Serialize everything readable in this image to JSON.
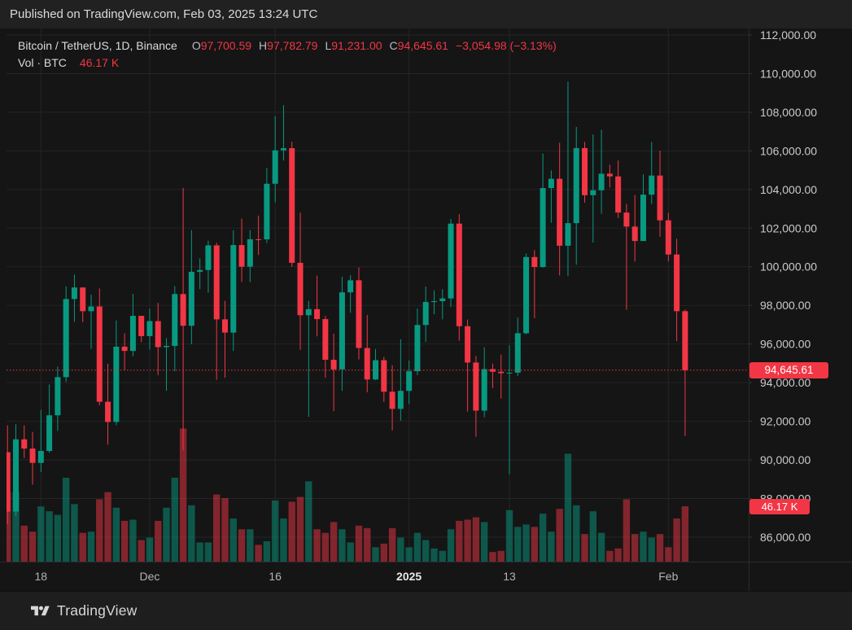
{
  "published_bar": {
    "text": "Published on TradingView.com, Feb 03, 2025 13:24 UTC"
  },
  "legend": {
    "symbol_title": "Bitcoin / TetherUS, 1D, Binance",
    "ohlc": [
      {
        "label": "O",
        "value": "97,700.59"
      },
      {
        "label": "H",
        "value": "97,782.79"
      },
      {
        "label": "L",
        "value": "91,231.00"
      },
      {
        "label": "C",
        "value": "94,645.61"
      }
    ],
    "change": "−3,054.98 (−3.13%)",
    "volume_label": "Vol · BTC",
    "volume_value": "46.17 K"
  },
  "last_price_badge": "94,645.61",
  "volume_badge": "46.17 K",
  "footer": {
    "brand": "TradingView"
  },
  "colors": {
    "up": "#089981",
    "down": "#F23645",
    "badge": "#F23645",
    "background": "#151515",
    "grid": "#252525",
    "axis_text": "#C9CACD",
    "time_text": "#B2B3B6",
    "time_text_bold": "#E6E7E9",
    "separator": "#2B2B2B"
  },
  "chart_data": {
    "type": "candlestick",
    "title": "Bitcoin / TetherUS, 1D, Binance",
    "last_price": 94645.61,
    "last_volume_k": 46.17,
    "y_axis": {
      "grid_step": 2000,
      "labels": [
        {
          "price": 112000,
          "text": "112,000.00"
        },
        {
          "price": 110000,
          "text": "110,000.00"
        },
        {
          "price": 108000,
          "text": "108,000.00"
        },
        {
          "price": 106000,
          "text": "106,000.00"
        },
        {
          "price": 104000,
          "text": "104,000.00"
        },
        {
          "price": 102000,
          "text": "102,000.00"
        },
        {
          "price": 100000,
          "text": "100,000.00"
        },
        {
          "price": 98000,
          "text": "98,000.00"
        },
        {
          "price": 96000,
          "text": "96,000.00"
        },
        {
          "price": 94000,
          "text": "94,000.00"
        },
        {
          "price": 92000,
          "text": "92,000.00"
        },
        {
          "price": 90000,
          "text": "90,000.00"
        },
        {
          "price": 88000,
          "text": "88,000.00"
        },
        {
          "price": 86000,
          "text": "86,000.00"
        }
      ]
    },
    "x_axis": {
      "ticks": [
        {
          "text": "18",
          "row": 4,
          "bold": false
        },
        {
          "text": "Dec",
          "row": 17,
          "bold": false
        },
        {
          "text": "16",
          "row": 32,
          "bold": false
        },
        {
          "text": "2025",
          "row": 48,
          "bold": true
        },
        {
          "text": "13",
          "row": 60,
          "bold": false
        },
        {
          "text": "Feb",
          "row": 79,
          "bold": false
        }
      ]
    },
    "columns": [
      "date",
      "open",
      "high",
      "low",
      "close",
      "volume_k_btc"
    ],
    "candles": [
      [
        "Nov 14",
        90400,
        91790,
        86668,
        87325,
        58
      ],
      [
        "Nov 15",
        87325,
        91850,
        87100,
        91066,
        58
      ],
      [
        "Nov 16",
        91066,
        91790,
        90100,
        90587,
        30
      ],
      [
        "Nov 17",
        90587,
        91449,
        88722,
        89845,
        25
      ],
      [
        "Nov 18",
        89845,
        92594,
        89376,
        90464,
        46
      ],
      [
        "Nov 19",
        90464,
        93905,
        90372,
        92310,
        42
      ],
      [
        "Nov 20",
        92310,
        94831,
        91500,
        94286,
        39
      ],
      [
        "Nov 21",
        94286,
        98988,
        94040,
        98331,
        70
      ],
      [
        "Nov 22",
        98331,
        99588,
        97153,
        98928,
        48
      ],
      [
        "Nov 23",
        98928,
        98928,
        97130,
        97700,
        24
      ],
      [
        "Nov 24",
        97700,
        98564,
        95747,
        97944,
        25
      ],
      [
        "Nov 25",
        97944,
        98871,
        92823,
        93010,
        52
      ],
      [
        "Nov 26",
        93010,
        94980,
        90791,
        91965,
        58
      ],
      [
        "Nov 27",
        91965,
        97219,
        91792,
        95863,
        45
      ],
      [
        "Nov 28",
        95863,
        96548,
        94648,
        95643,
        34
      ],
      [
        "Nov 29",
        95643,
        98599,
        95364,
        97460,
        35
      ],
      [
        "Nov 30",
        97460,
        97461,
        96100,
        96407,
        18
      ],
      [
        "Dec 1",
        96407,
        97836,
        95712,
        97185,
        20
      ],
      [
        "Dec 2",
        97185,
        98130,
        94395,
        95841,
        34
      ],
      [
        "Dec 3",
        95841,
        96305,
        93578,
        95903,
        45
      ],
      [
        "Dec 4",
        95903,
        99000,
        94587,
        98587,
        70
      ],
      [
        "Dec 5",
        98587,
        104088,
        90500,
        96945,
        111
      ],
      [
        "Dec 6",
        96945,
        101898,
        95987,
        99740,
        47
      ],
      [
        "Dec 7",
        99740,
        100439,
        98844,
        99831,
        16
      ],
      [
        "Dec 8",
        99831,
        101351,
        98657,
        101109,
        16
      ],
      [
        "Dec 9",
        101109,
        101236,
        94150,
        97276,
        56
      ],
      [
        "Dec 10",
        97276,
        98237,
        94256,
        96593,
        53
      ],
      [
        "Dec 11",
        96593,
        101888,
        95650,
        101125,
        36
      ],
      [
        "Dec 12",
        101125,
        102495,
        99219,
        100004,
        27
      ],
      [
        "Dec 13",
        100004,
        101895,
        99205,
        101424,
        27
      ],
      [
        "Dec 14",
        101424,
        102650,
        100609,
        101420,
        14
      ],
      [
        "Dec 15",
        101420,
        105120,
        101234,
        104298,
        17
      ],
      [
        "Dec 16",
        104298,
        107793,
        103333,
        106029,
        51
      ],
      [
        "Dec 17",
        106029,
        108364,
        105500,
        106140,
        36
      ],
      [
        "Dec 18",
        106140,
        106477,
        100000,
        100204,
        50
      ],
      [
        "Dec 19",
        100204,
        102800,
        95700,
        97490,
        54
      ],
      [
        "Dec 20",
        97490,
        98233,
        92232,
        97805,
        67
      ],
      [
        "Dec 21",
        97805,
        99540,
        96398,
        97290,
        27
      ],
      [
        "Dec 22",
        97290,
        97448,
        94250,
        95186,
        24
      ],
      [
        "Dec 23",
        95186,
        96538,
        92520,
        94686,
        33
      ],
      [
        "Dec 24",
        94686,
        99487,
        93571,
        98676,
        27
      ],
      [
        "Dec 25",
        98676,
        99563,
        97618,
        99299,
        16
      ],
      [
        "Dec 26",
        99299,
        99963,
        95199,
        95795,
        30
      ],
      [
        "Dec 27",
        95795,
        97507,
        93500,
        94164,
        28
      ],
      [
        "Dec 28",
        94164,
        95750,
        94135,
        95163,
        12
      ],
      [
        "Dec 29",
        95163,
        95340,
        93009,
        93530,
        15
      ],
      [
        "Dec 30",
        93530,
        94900,
        91530,
        92643,
        28
      ],
      [
        "Dec 31",
        92643,
        96250,
        92033,
        93576,
        20
      ],
      [
        "Jan 1",
        93576,
        95151,
        92888,
        94591,
        12
      ],
      [
        "Jan 2",
        94591,
        97839,
        94392,
        96984,
        24
      ],
      [
        "Jan 3",
        96984,
        98976,
        96100,
        98174,
        18
      ],
      [
        "Jan 4",
        98174,
        98778,
        97540,
        98220,
        11
      ],
      [
        "Jan 5",
        98220,
        98836,
        97276,
        98360,
        9
      ],
      [
        "Jan 6",
        98360,
        102480,
        97920,
        102235,
        27
      ],
      [
        "Jan 7",
        102235,
        102724,
        96170,
        96923,
        34
      ],
      [
        "Jan 8",
        96923,
        97268,
        92500,
        95043,
        35
      ],
      [
        "Jan 9",
        95043,
        95382,
        91203,
        92552,
        37
      ],
      [
        "Jan 10",
        92552,
        95836,
        92206,
        94701,
        33
      ],
      [
        "Jan 11",
        94701,
        94987,
        93712,
        94566,
        8
      ],
      [
        "Jan 12",
        94566,
        95450,
        93176,
        94488,
        9
      ],
      [
        "Jan 13",
        94488,
        95940,
        89256,
        94516,
        43
      ],
      [
        "Jan 14",
        94516,
        97371,
        94346,
        96560,
        29
      ],
      [
        "Jan 15",
        96560,
        100681,
        96500,
        100504,
        31
      ],
      [
        "Jan 16",
        100504,
        100866,
        97335,
        99987,
        29
      ],
      [
        "Jan 17",
        99987,
        105865,
        99950,
        104077,
        40
      ],
      [
        "Jan 18",
        104077,
        104987,
        102277,
        104556,
        25
      ],
      [
        "Jan 19",
        104556,
        106422,
        99550,
        101089,
        44
      ],
      [
        "Jan 20",
        101089,
        109588,
        99514,
        102260,
        90
      ],
      [
        "Jan 21",
        102260,
        107240,
        100104,
        106146,
        47
      ],
      [
        "Jan 22",
        106146,
        106468,
        103316,
        103706,
        23
      ],
      [
        "Jan 23",
        103706,
        106850,
        101252,
        103960,
        42
      ],
      [
        "Jan 24",
        103960,
        107098,
        102750,
        104819,
        24
      ],
      [
        "Jan 25",
        104819,
        105287,
        104106,
        104679,
        9
      ],
      [
        "Jan 26",
        104679,
        105500,
        102520,
        102806,
        11
      ],
      [
        "Jan 27",
        102806,
        103260,
        97777,
        102080,
        52
      ],
      [
        "Jan 28",
        102080,
        103711,
        100272,
        101335,
        23
      ],
      [
        "Jan 29",
        101335,
        104782,
        101328,
        103733,
        25
      ],
      [
        "Jan 30",
        103733,
        106457,
        103256,
        104722,
        20
      ],
      [
        "Jan 31",
        104722,
        106012,
        101560,
        102405,
        23
      ],
      [
        "Feb 1",
        102405,
        102789,
        100279,
        100635,
        12
      ],
      [
        "Feb 2",
        100635,
        101456,
        96150,
        97700,
        36
      ],
      [
        "Feb 3",
        97700.59,
        97782.79,
        91231.0,
        94645.61,
        46.17
      ]
    ]
  }
}
